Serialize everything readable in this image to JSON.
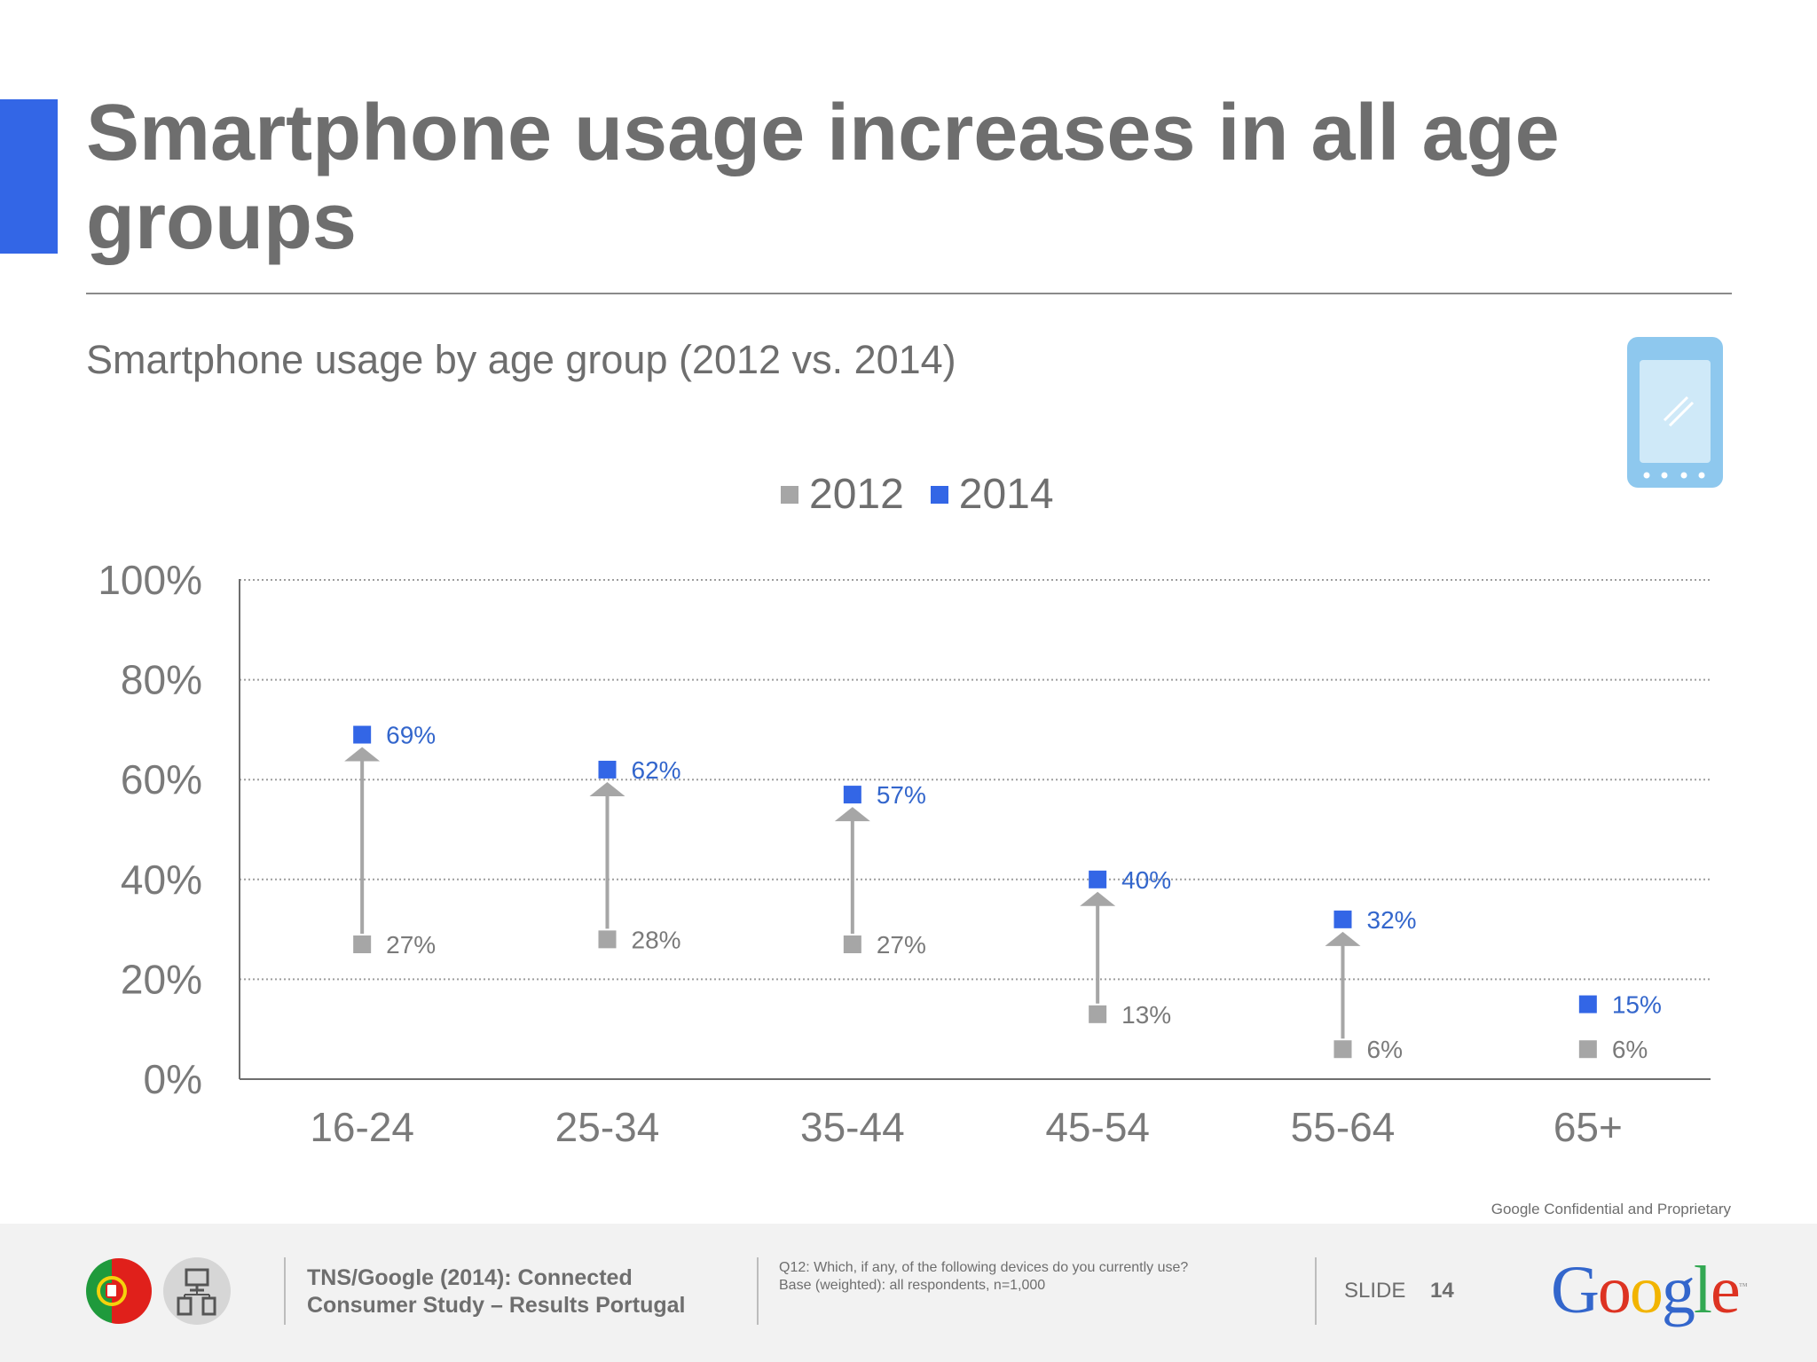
{
  "title": "Smartphone usage increases in all age groups",
  "subtitle": "Smartphone usage by age group (2012 vs. 2014)",
  "legend": [
    {
      "label": "2012",
      "color": "#a6a6a6"
    },
    {
      "label": "2014",
      "color": "#3366e6"
    }
  ],
  "chart_data": {
    "type": "scatter",
    "categories": [
      "16-24",
      "25-34",
      "35-44",
      "45-54",
      "55-64",
      "65+"
    ],
    "series": [
      {
        "name": "2012",
        "color": "#a6a6a6",
        "values": [
          27,
          28,
          27,
          13,
          6,
          6
        ],
        "labels": [
          "27%",
          "28%",
          "27%",
          "13%",
          "6%",
          "6%"
        ]
      },
      {
        "name": "2014",
        "color": "#3366e6",
        "values": [
          69,
          62,
          57,
          40,
          32,
          15
        ],
        "labels": [
          "69%",
          "62%",
          "57%",
          "40%",
          "32%",
          "15%"
        ]
      }
    ],
    "ylim": [
      0,
      100
    ],
    "yticks": [
      "0%",
      "20%",
      "40%",
      "60%",
      "80%",
      "100%"
    ],
    "ytick_values": [
      0,
      20,
      40,
      60,
      80,
      100
    ],
    "grid": true,
    "arrows": true
  },
  "footer": {
    "confidential": "Google Confidential and Proprietary",
    "source_line1": "TNS/Google (2014): Connected",
    "source_line2": "Consumer Study – Results Portugal",
    "question_line1": "Q12: Which, if any, of the following devices do you currently use?",
    "question_line2": "Base (weighted): all respondents, n=1,000",
    "slide_label": "SLIDE",
    "slide_number": "14",
    "logo_letters": [
      "G",
      "o",
      "o",
      "g",
      "l",
      "e"
    ],
    "logo_colors": [
      "#3366cc",
      "#dd3322",
      "#f2b400",
      "#3366cc",
      "#33a853",
      "#dd3322"
    ],
    "logo_tm": "™"
  }
}
